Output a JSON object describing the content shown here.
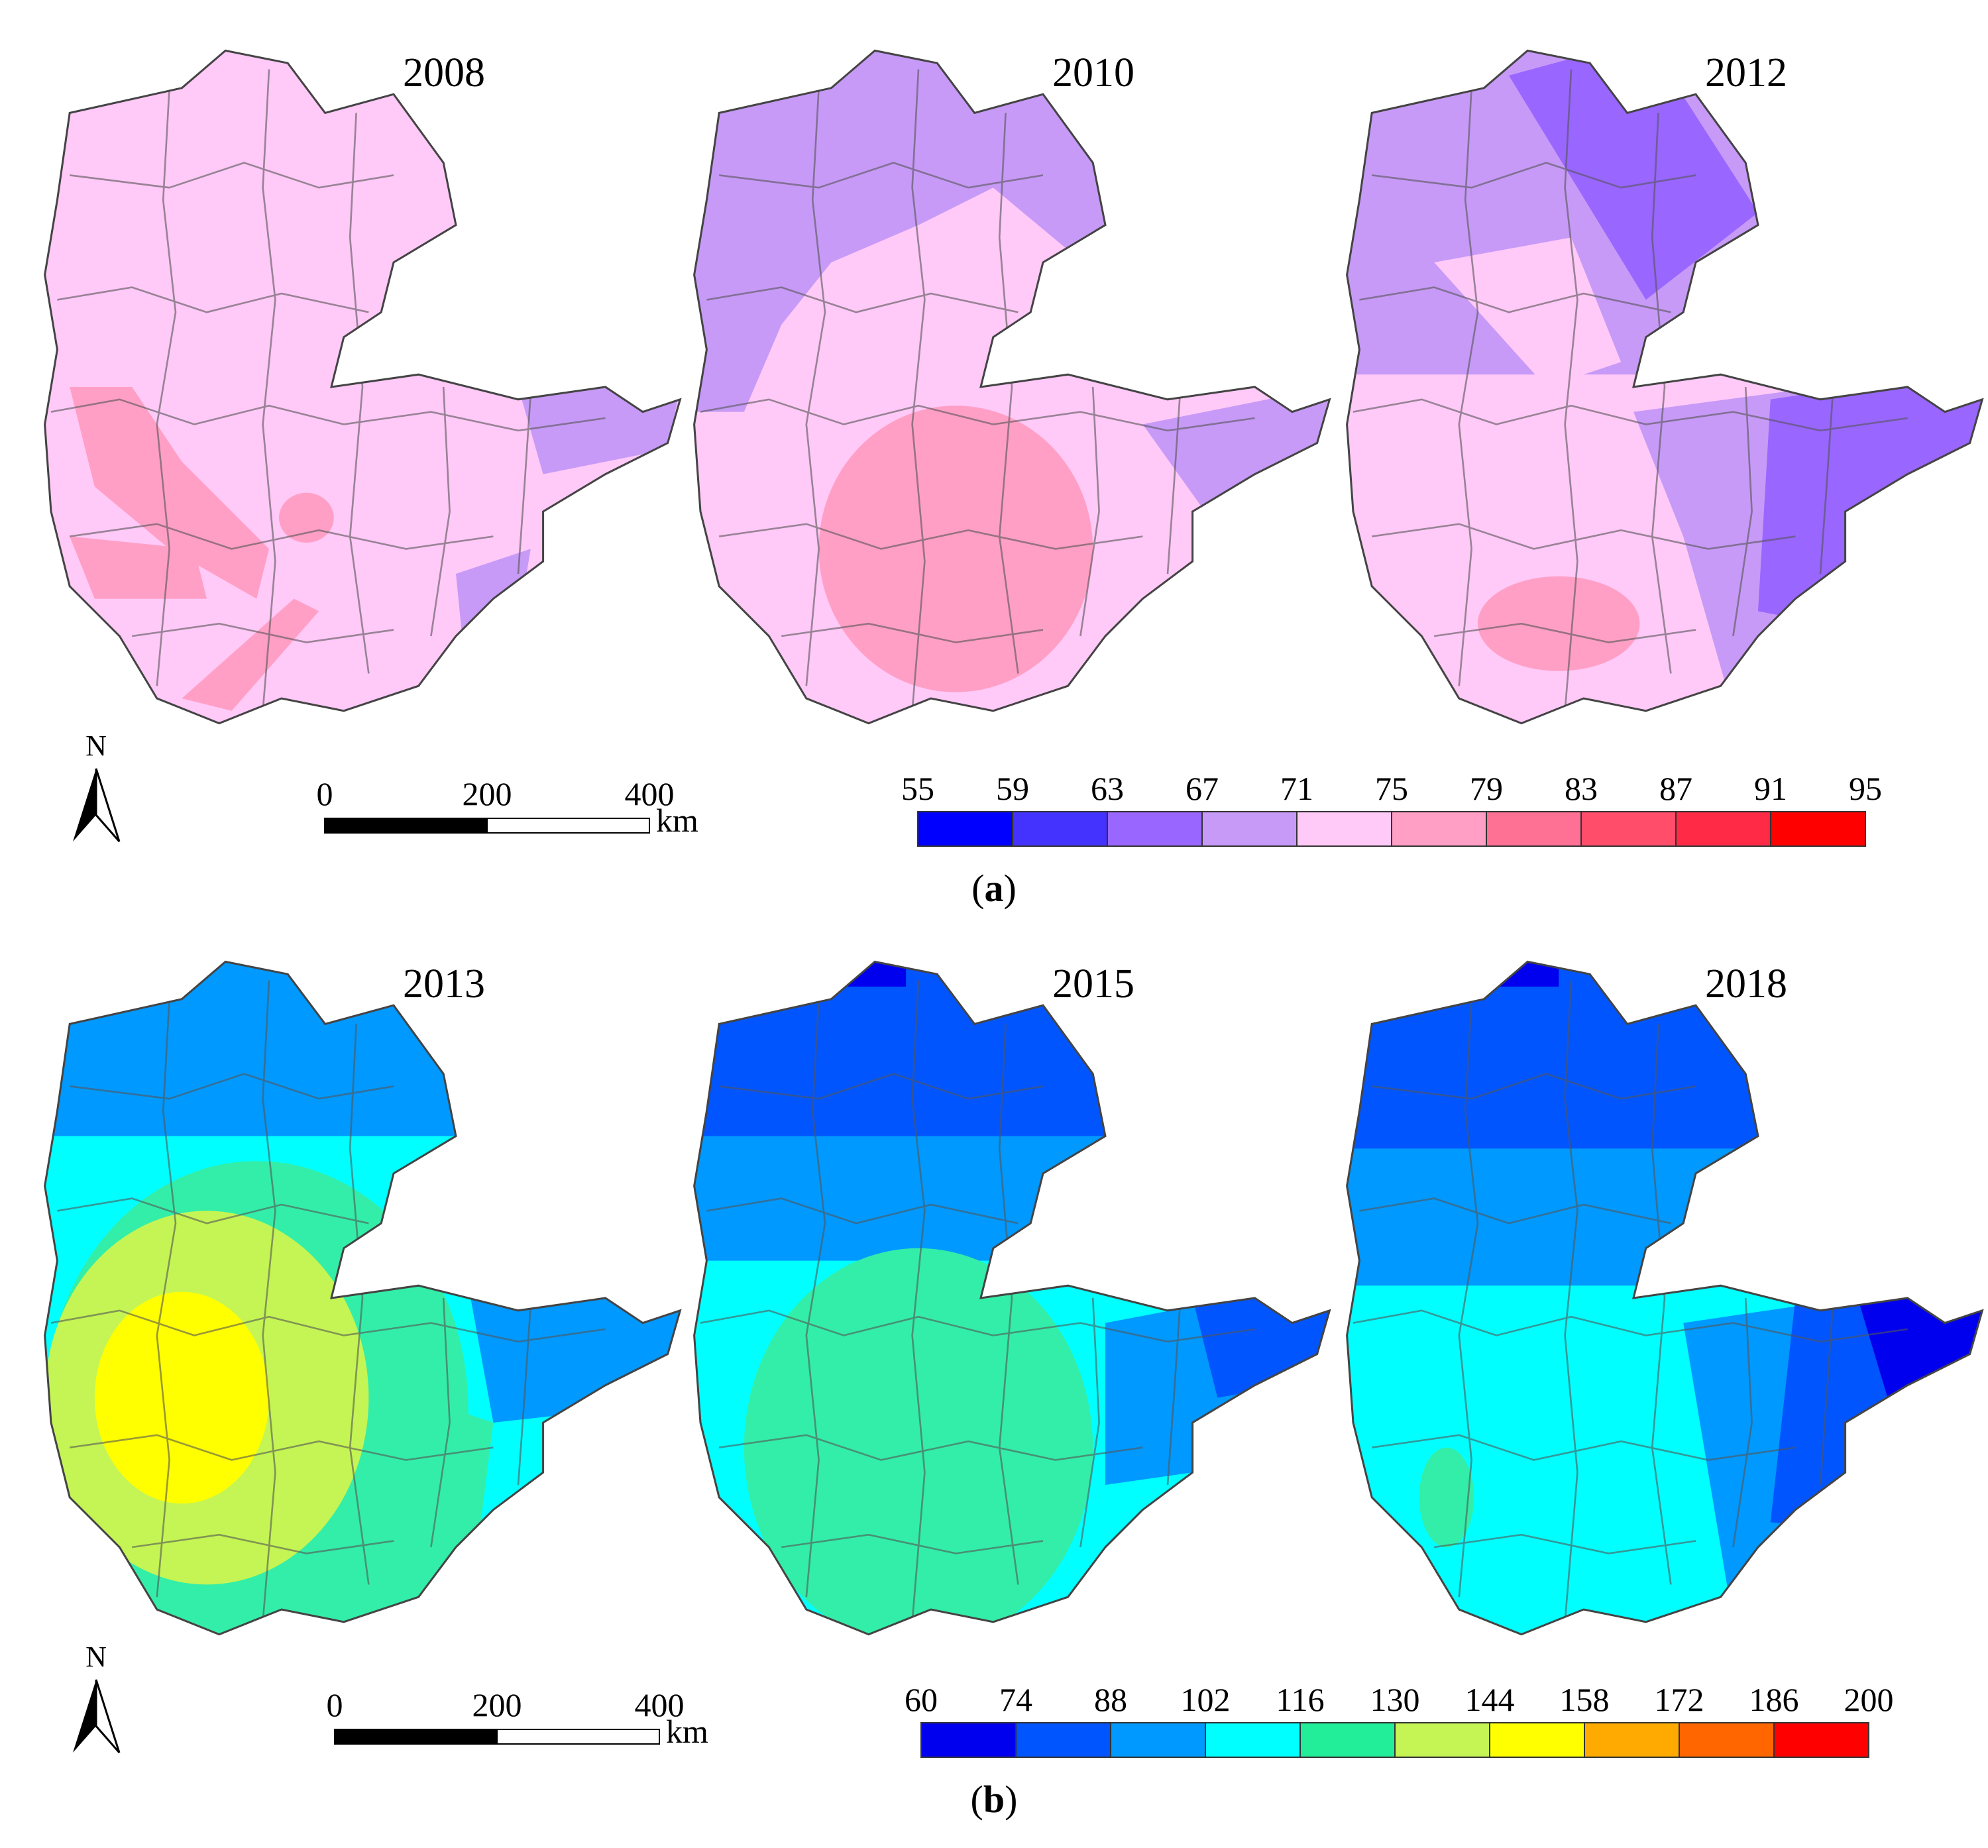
{
  "panels": [
    {
      "label": "a",
      "maps": [
        {
          "year": "2008",
          "scheme": [
            "#ffc9f8",
            "#c79af7",
            "#ff9fc5"
          ]
        },
        {
          "year": "2010",
          "scheme": [
            "#ffc9f8",
            "#c79af7",
            "#ff9fc5"
          ]
        },
        {
          "year": "2012",
          "scheme": [
            "#ffc9f8",
            "#c79af7",
            "#9966ff"
          ]
        }
      ],
      "north_label": "N",
      "scale_bar": {
        "ticks": [
          "0",
          "200",
          "400"
        ],
        "unit": "km"
      },
      "legend": {
        "breaks": [
          "55",
          "59",
          "63",
          "67",
          "71",
          "75",
          "79",
          "83",
          "87",
          "91",
          "95"
        ],
        "colors": [
          "#0000ff",
          "#4433ff",
          "#9966ff",
          "#c79af7",
          "#ffc9f8",
          "#ff9fc5",
          "#ff7095",
          "#ff4d6a",
          "#ff2a45",
          "#ff0000"
        ]
      }
    },
    {
      "label": "b",
      "maps": [
        {
          "year": "2013",
          "scheme": [
            "#00ffff",
            "#33eea8",
            "#c4f554",
            "#ffff00",
            "#0099ff"
          ]
        },
        {
          "year": "2015",
          "scheme": [
            "#00ffff",
            "#0099ff",
            "#33eea8",
            "#0055ff",
            "#0000ee"
          ]
        },
        {
          "year": "2018",
          "scheme": [
            "#00ffff",
            "#0099ff",
            "#0055ff",
            "#0000ee",
            "#33eea8"
          ]
        }
      ],
      "north_label": "N",
      "scale_bar": {
        "ticks": [
          "0",
          "200",
          "400"
        ],
        "unit": "km"
      },
      "legend": {
        "breaks": [
          "60",
          "74",
          "88",
          "102",
          "116",
          "130",
          "144",
          "158",
          "172",
          "186",
          "200"
        ],
        "colors": [
          "#0000ee",
          "#0055ff",
          "#0099ff",
          "#00ffff",
          "#22ee99",
          "#c4f554",
          "#ffff00",
          "#ffaa00",
          "#ff6600",
          "#ff0000"
        ]
      }
    }
  ]
}
